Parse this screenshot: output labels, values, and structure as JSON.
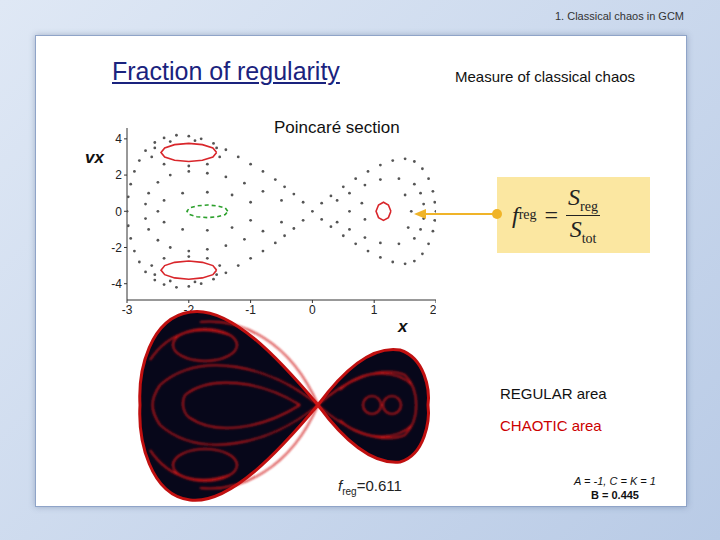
{
  "header": "1. Classical chaos in GCM",
  "title": "Fraction of regularity",
  "subtitle": "Measure of classical chaos",
  "section_label": "Poincaré section",
  "chart_data": {
    "type": "scatter",
    "x_label": "x",
    "y_label": "vx",
    "xlim": [
      -3,
      2
    ],
    "ylim": [
      -4.9,
      4.6
    ],
    "xticks": [
      -3,
      -2,
      -1,
      0,
      1,
      2
    ],
    "yticks": [
      -4,
      -2,
      0,
      2,
      4
    ],
    "tick_labels": true,
    "series": [
      {
        "color": "#555555",
        "marker": "dot",
        "points": [
          [
            0,
            0
          ],
          [
            -0.15,
            0.5
          ],
          [
            -0.3,
            0.95
          ],
          [
            -0.45,
            1.35
          ],
          [
            -0.6,
            1.75
          ],
          [
            -0.8,
            2.2
          ],
          [
            -1,
            2.6
          ],
          [
            -1.2,
            3.0
          ],
          [
            -1.4,
            3.4
          ],
          [
            -1.6,
            3.75
          ],
          [
            -1.8,
            4.0
          ],
          [
            -2,
            4.15
          ],
          [
            -2.2,
            4.2
          ],
          [
            -2.4,
            4.05
          ],
          [
            -2.55,
            3.8
          ],
          [
            -2.7,
            3.35
          ],
          [
            -2.8,
            2.8
          ],
          [
            -2.88,
            2.2
          ],
          [
            -2.94,
            1.5
          ],
          [
            -2.98,
            0.8
          ],
          [
            -3,
            0
          ],
          [
            -0.15,
            -0.5
          ],
          [
            -0.3,
            -0.95
          ],
          [
            -0.45,
            -1.35
          ],
          [
            -0.6,
            -1.75
          ],
          [
            -0.8,
            -2.2
          ],
          [
            -1,
            -2.6
          ],
          [
            -1.2,
            -3.0
          ],
          [
            -1.4,
            -3.4
          ],
          [
            -1.6,
            -3.75
          ],
          [
            -1.8,
            -4.0
          ],
          [
            -2,
            -4.15
          ],
          [
            -2.2,
            -4.2
          ],
          [
            -2.4,
            -4.05
          ],
          [
            -2.55,
            -3.8
          ],
          [
            -2.7,
            -3.35
          ],
          [
            -2.8,
            -2.8
          ],
          [
            -2.88,
            -2.2
          ],
          [
            -2.94,
            -1.5
          ],
          [
            -2.98,
            -0.8
          ],
          [
            0.15,
            0.45
          ],
          [
            0.3,
            0.85
          ],
          [
            0.5,
            1.35
          ],
          [
            0.7,
            1.8
          ],
          [
            0.9,
            2.2
          ],
          [
            1.1,
            2.55
          ],
          [
            1.3,
            2.8
          ],
          [
            1.5,
            2.9
          ],
          [
            1.65,
            2.75
          ],
          [
            1.78,
            2.35
          ],
          [
            1.88,
            1.8
          ],
          [
            1.95,
            1.1
          ],
          [
            1.98,
            0.5
          ],
          [
            2,
            0
          ],
          [
            0.15,
            -0.45
          ],
          [
            0.3,
            -0.85
          ],
          [
            0.5,
            -1.35
          ],
          [
            0.7,
            -1.8
          ],
          [
            0.9,
            -2.2
          ],
          [
            1.1,
            -2.55
          ],
          [
            1.3,
            -2.8
          ],
          [
            1.5,
            -2.9
          ],
          [
            1.65,
            -2.75
          ],
          [
            1.78,
            -2.35
          ],
          [
            1.88,
            -1.8
          ],
          [
            1.95,
            -1.1
          ],
          [
            1.98,
            -0.5
          ],
          [
            -0.5,
            0.6
          ],
          [
            -0.8,
            1.1
          ],
          [
            -1.1,
            1.55
          ],
          [
            -1.4,
            1.9
          ],
          [
            -1.7,
            2.1
          ],
          [
            -2,
            2.2
          ],
          [
            -2.3,
            2.0
          ],
          [
            -2.5,
            1.6
          ],
          [
            -2.65,
            1.0
          ],
          [
            -2.7,
            0.4
          ],
          [
            -0.5,
            -0.6
          ],
          [
            -0.8,
            -1.1
          ],
          [
            -1.1,
            -1.55
          ],
          [
            -1.4,
            -1.9
          ],
          [
            -1.7,
            -2.1
          ],
          [
            -2,
            -2.2
          ],
          [
            -2.3,
            -2.0
          ],
          [
            -2.5,
            -1.6
          ],
          [
            -2.65,
            -1.0
          ],
          [
            -2.7,
            -0.4
          ],
          [
            -1,
            0.5
          ],
          [
            -1.3,
            0.9
          ],
          [
            -1.7,
            1.05
          ],
          [
            -2.1,
            1.0
          ],
          [
            -2.4,
            0.6
          ],
          [
            -2.5,
            0
          ],
          [
            -1,
            -0.5
          ],
          [
            -1.3,
            -0.9
          ],
          [
            -1.7,
            -1.05
          ],
          [
            -2.1,
            -1.0
          ],
          [
            -2.4,
            -0.6
          ],
          [
            -1.5,
            3.0
          ],
          [
            -1.7,
            2.6
          ],
          [
            -2.0,
            2.5
          ],
          [
            -2.4,
            2.6
          ],
          [
            -2.6,
            3.0
          ],
          [
            -2.55,
            3.5
          ],
          [
            -2.3,
            3.85
          ],
          [
            -1.9,
            3.9
          ],
          [
            -1.55,
            3.5
          ],
          [
            -1.5,
            -3.0
          ],
          [
            -1.7,
            -2.6
          ],
          [
            -2.0,
            -2.5
          ],
          [
            -2.4,
            -2.6
          ],
          [
            -2.6,
            -3.0
          ],
          [
            -2.55,
            -3.5
          ],
          [
            -2.3,
            -3.85
          ],
          [
            -1.9,
            -3.9
          ],
          [
            -1.55,
            -3.5
          ],
          [
            0.4,
            0.6
          ],
          [
            0.6,
            1.0
          ],
          [
            0.85,
            1.45
          ],
          [
            1.1,
            1.75
          ],
          [
            1.4,
            1.8
          ],
          [
            1.65,
            1.5
          ],
          [
            1.75,
            1.0
          ],
          [
            1.8,
            0.4
          ],
          [
            0.4,
            -0.6
          ],
          [
            0.6,
            -1.0
          ],
          [
            0.85,
            -1.45
          ],
          [
            1.1,
            -1.75
          ],
          [
            1.4,
            -1.8
          ],
          [
            1.65,
            -1.5
          ],
          [
            1.75,
            -1.0
          ],
          [
            1.8,
            -0.4
          ],
          [
            0.6,
            0
          ],
          [
            0.8,
            0.45
          ],
          [
            0.85,
            -0.45
          ],
          [
            1.5,
            0.9
          ],
          [
            1.55,
            -0.9
          ],
          [
            1.6,
            0
          ]
        ]
      },
      {
        "color": "#d9262b",
        "line_style": "solid",
        "points": [
          [
            -1.55,
            3.25
          ],
          [
            -1.61,
            3.5
          ],
          [
            -1.78,
            3.68
          ],
          [
            -2.0,
            3.75
          ],
          [
            -2.23,
            3.68
          ],
          [
            -2.39,
            3.5
          ],
          [
            -2.45,
            3.25
          ],
          [
            -2.39,
            3.0
          ],
          [
            -2.23,
            2.82
          ],
          [
            -2.0,
            2.75
          ],
          [
            -1.78,
            2.82
          ],
          [
            -1.61,
            3.0
          ],
          [
            -1.55,
            3.25
          ]
        ]
      },
      {
        "color": "#d9262b",
        "line_style": "solid",
        "points": [
          [
            -1.55,
            -3.25
          ],
          [
            -1.61,
            -3.5
          ],
          [
            -1.78,
            -3.68
          ],
          [
            -2.0,
            -3.75
          ],
          [
            -2.23,
            -3.68
          ],
          [
            -2.39,
            -3.5
          ],
          [
            -2.45,
            -3.25
          ],
          [
            -2.39,
            -3.0
          ],
          [
            -2.23,
            -2.82
          ],
          [
            -2.0,
            -2.75
          ],
          [
            -1.78,
            -2.82
          ],
          [
            -1.61,
            -3.0
          ],
          [
            -1.55,
            -3.25
          ]
        ]
      },
      {
        "color": "#2ca02c",
        "line_style": "dashed",
        "points": [
          [
            -1.37,
            0
          ],
          [
            -1.41,
            0.18
          ],
          [
            -1.54,
            0.3
          ],
          [
            -1.7,
            0.35
          ],
          [
            -1.87,
            0.3
          ],
          [
            -1.99,
            0.18
          ],
          [
            -2.03,
            0
          ],
          [
            -1.99,
            -0.18
          ],
          [
            -1.87,
            -0.3
          ],
          [
            -1.7,
            -0.35
          ],
          [
            -1.54,
            -0.3
          ],
          [
            -1.41,
            -0.18
          ],
          [
            -1.37,
            0
          ]
        ]
      },
      {
        "color": "#d9262b",
        "line_style": "solid",
        "points": [
          [
            1.27,
            0
          ],
          [
            1.23,
            0.35
          ],
          [
            1.15,
            0.5
          ],
          [
            1.07,
            0.35
          ],
          [
            1.03,
            0
          ],
          [
            1.07,
            -0.35
          ],
          [
            1.15,
            -0.5
          ],
          [
            1.23,
            -0.35
          ],
          [
            1.27,
            0
          ]
        ]
      }
    ]
  },
  "formula": {
    "lhs": "f",
    "lhs_sub": "reg",
    "equals": "=",
    "num": "S",
    "num_sub": "reg",
    "den": "S",
    "den_sub": "tot"
  },
  "legend": [
    {
      "text": "REGULAR area",
      "color": "#111111"
    },
    {
      "text": "CHAOTIC area",
      "color": "#cc0000"
    }
  ],
  "fraction": {
    "symbol": "f",
    "sub": "reg",
    "equals": "=",
    "value": 0.611
  },
  "params": [
    "A = -1, C = K = 1",
    "B = 0.445"
  ]
}
